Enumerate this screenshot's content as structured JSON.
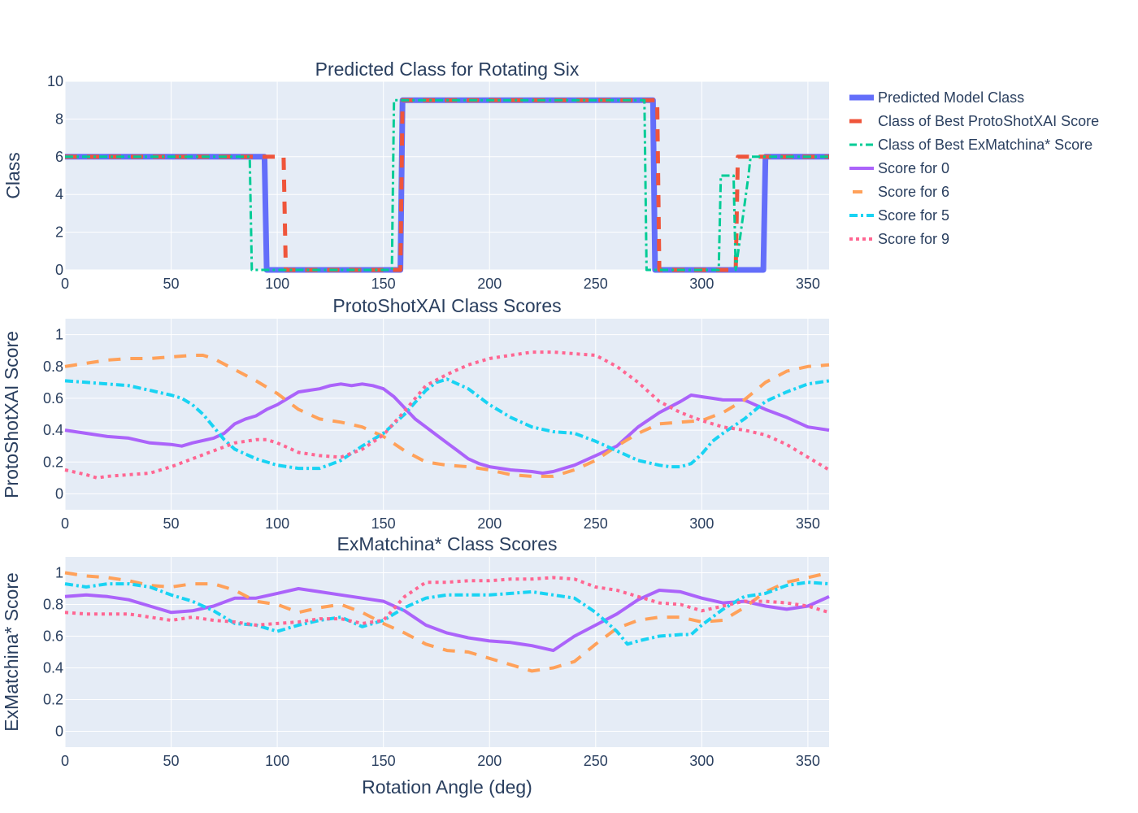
{
  "figure": {
    "legend_position": "right",
    "x_axis_label": "Rotation Angle (deg)"
  },
  "chart_data": [
    {
      "type": "line",
      "title": "Predicted Class for Rotating Six",
      "xlabel": "",
      "ylabel": "Class",
      "xlim": [
        0,
        360
      ],
      "ylim": [
        0,
        10
      ],
      "xticks": [
        0,
        50,
        100,
        150,
        200,
        250,
        300,
        350
      ],
      "yticks": [
        0,
        2,
        4,
        6,
        8,
        10
      ],
      "grid": true,
      "series": [
        {
          "name": "Predicted Model Class",
          "color": "#636efa",
          "dash": "solid",
          "width": 7,
          "line_shape": "step",
          "x": [
            0,
            94,
            95,
            158,
            159,
            277,
            278,
            329,
            330,
            360
          ],
          "y": [
            6,
            6,
            0,
            0,
            9,
            9,
            0,
            0,
            6,
            6
          ]
        },
        {
          "name": "Class of Best ProtoShotXAI Score",
          "color": "#ef553b",
          "dash": "dash",
          "width": 5,
          "line_shape": "step",
          "x": [
            0,
            103,
            104,
            158,
            159,
            279,
            280,
            316,
            317,
            360
          ],
          "y": [
            6,
            6,
            0,
            0,
            9,
            9,
            0,
            0,
            6,
            6
          ]
        },
        {
          "name": "Class of Best ExMatchina* Score",
          "color": "#00cc96",
          "dash": "dashdot",
          "width": 3,
          "line_shape": "step",
          "x": [
            0,
            87,
            88,
            154,
            155,
            273,
            274,
            308,
            309,
            315,
            316,
            322,
            323,
            360
          ],
          "y": [
            6,
            6,
            0,
            0,
            9,
            9,
            0,
            0,
            5,
            5,
            0,
            5,
            6,
            6
          ]
        }
      ]
    },
    {
      "type": "line",
      "title": "ProtoShotXAI Class Scores",
      "xlabel": "",
      "ylabel": "ProtoShotXAI Score",
      "xlim": [
        0,
        360
      ],
      "ylim": [
        -0.1,
        1.1
      ],
      "xticks": [
        0,
        50,
        100,
        150,
        200,
        250,
        300,
        350
      ],
      "yticks": [
        0,
        0.2,
        0.4,
        0.6,
        0.8,
        1
      ],
      "grid": true,
      "series": [
        {
          "name": "Score for 0",
          "color": "#ab63fa",
          "dash": "solid",
          "width": 4,
          "x": [
            0,
            10,
            20,
            30,
            40,
            50,
            55,
            60,
            70,
            75,
            80,
            85,
            90,
            95,
            100,
            105,
            110,
            115,
            120,
            125,
            130,
            135,
            140,
            145,
            150,
            155,
            160,
            165,
            170,
            175,
            180,
            185,
            190,
            195,
            200,
            210,
            220,
            225,
            230,
            240,
            250,
            260,
            270,
            280,
            290,
            295,
            300,
            305,
            310,
            315,
            320,
            330,
            340,
            350,
            360
          ],
          "y": [
            0.4,
            0.38,
            0.36,
            0.35,
            0.32,
            0.31,
            0.3,
            0.32,
            0.35,
            0.38,
            0.44,
            0.47,
            0.49,
            0.53,
            0.56,
            0.6,
            0.64,
            0.65,
            0.66,
            0.68,
            0.69,
            0.68,
            0.69,
            0.68,
            0.66,
            0.61,
            0.54,
            0.47,
            0.42,
            0.37,
            0.32,
            0.27,
            0.22,
            0.19,
            0.17,
            0.15,
            0.14,
            0.13,
            0.14,
            0.18,
            0.24,
            0.3,
            0.42,
            0.51,
            0.58,
            0.62,
            0.61,
            0.6,
            0.59,
            0.59,
            0.59,
            0.53,
            0.48,
            0.42,
            0.4
          ]
        },
        {
          "name": "Score for 6",
          "color": "#ffa15a",
          "dash": "dash",
          "width": 4,
          "x": [
            0,
            10,
            20,
            30,
            40,
            50,
            60,
            65,
            70,
            80,
            90,
            100,
            110,
            120,
            130,
            140,
            150,
            160,
            170,
            180,
            190,
            200,
            210,
            220,
            230,
            240,
            250,
            260,
            270,
            280,
            290,
            300,
            310,
            320,
            330,
            340,
            350,
            360
          ],
          "y": [
            0.8,
            0.82,
            0.84,
            0.85,
            0.85,
            0.86,
            0.87,
            0.87,
            0.85,
            0.78,
            0.71,
            0.63,
            0.53,
            0.47,
            0.45,
            0.42,
            0.36,
            0.27,
            0.2,
            0.18,
            0.17,
            0.15,
            0.12,
            0.11,
            0.11,
            0.15,
            0.21,
            0.3,
            0.38,
            0.44,
            0.45,
            0.46,
            0.51,
            0.59,
            0.7,
            0.77,
            0.8,
            0.81
          ]
        },
        {
          "name": "Score for 5",
          "color": "#19d3f3",
          "dash": "dashdot",
          "width": 4,
          "x": [
            0,
            10,
            20,
            30,
            40,
            50,
            55,
            60,
            65,
            70,
            75,
            80,
            90,
            100,
            110,
            120,
            130,
            140,
            150,
            160,
            170,
            175,
            180,
            190,
            200,
            210,
            220,
            230,
            240,
            250,
            260,
            270,
            280,
            285,
            290,
            295,
            300,
            305,
            310,
            320,
            330,
            340,
            350,
            360
          ],
          "y": [
            0.71,
            0.7,
            0.69,
            0.68,
            0.65,
            0.62,
            0.6,
            0.56,
            0.5,
            0.42,
            0.34,
            0.28,
            0.22,
            0.18,
            0.16,
            0.16,
            0.21,
            0.3,
            0.38,
            0.5,
            0.65,
            0.7,
            0.72,
            0.66,
            0.56,
            0.48,
            0.42,
            0.39,
            0.38,
            0.33,
            0.27,
            0.21,
            0.18,
            0.17,
            0.17,
            0.19,
            0.25,
            0.33,
            0.38,
            0.47,
            0.58,
            0.64,
            0.69,
            0.71
          ]
        },
        {
          "name": "Score for 9",
          "color": "#ff6692",
          "dash": "dot",
          "width": 4,
          "x": [
            0,
            10,
            15,
            20,
            30,
            40,
            50,
            60,
            70,
            80,
            90,
            95,
            100,
            105,
            110,
            120,
            130,
            140,
            150,
            160,
            170,
            180,
            190,
            200,
            210,
            220,
            230,
            240,
            250,
            260,
            270,
            280,
            290,
            300,
            310,
            320,
            330,
            340,
            350,
            360
          ],
          "y": [
            0.15,
            0.12,
            0.1,
            0.11,
            0.12,
            0.13,
            0.17,
            0.22,
            0.27,
            0.32,
            0.34,
            0.34,
            0.32,
            0.29,
            0.26,
            0.24,
            0.23,
            0.28,
            0.37,
            0.52,
            0.68,
            0.75,
            0.81,
            0.85,
            0.87,
            0.89,
            0.89,
            0.88,
            0.87,
            0.8,
            0.7,
            0.58,
            0.51,
            0.46,
            0.42,
            0.4,
            0.37,
            0.31,
            0.23,
            0.15
          ]
        }
      ]
    },
    {
      "type": "line",
      "title": "ExMatchina* Class Scores",
      "xlabel": "Rotation Angle (deg)",
      "ylabel": "ExMatchina* Score",
      "xlim": [
        0,
        360
      ],
      "ylim": [
        -0.1,
        1.1
      ],
      "xticks": [
        0,
        50,
        100,
        150,
        200,
        250,
        300,
        350
      ],
      "yticks": [
        0,
        0.2,
        0.4,
        0.6,
        0.8,
        1
      ],
      "grid": true,
      "series": [
        {
          "name": "Score for 0",
          "color": "#ab63fa",
          "dash": "solid",
          "width": 4,
          "x": [
            0,
            10,
            20,
            30,
            40,
            50,
            60,
            70,
            80,
            90,
            100,
            110,
            120,
            130,
            140,
            150,
            160,
            170,
            180,
            190,
            200,
            210,
            220,
            230,
            240,
            250,
            260,
            270,
            280,
            290,
            300,
            310,
            320,
            330,
            340,
            350,
            360
          ],
          "y": [
            0.85,
            0.86,
            0.85,
            0.83,
            0.79,
            0.75,
            0.76,
            0.79,
            0.84,
            0.84,
            0.87,
            0.9,
            0.88,
            0.86,
            0.84,
            0.82,
            0.76,
            0.67,
            0.62,
            0.59,
            0.57,
            0.56,
            0.54,
            0.51,
            0.6,
            0.67,
            0.74,
            0.83,
            0.89,
            0.88,
            0.84,
            0.81,
            0.82,
            0.79,
            0.77,
            0.79,
            0.85
          ]
        },
        {
          "name": "Score for 6",
          "color": "#ffa15a",
          "dash": "dash",
          "width": 4,
          "x": [
            0,
            10,
            20,
            30,
            40,
            50,
            60,
            70,
            80,
            90,
            100,
            110,
            120,
            130,
            140,
            150,
            160,
            170,
            180,
            190,
            200,
            210,
            220,
            230,
            240,
            250,
            260,
            270,
            280,
            290,
            300,
            310,
            320,
            330,
            340,
            350,
            360
          ],
          "y": [
            1.0,
            0.98,
            0.97,
            0.95,
            0.92,
            0.91,
            0.93,
            0.93,
            0.89,
            0.82,
            0.8,
            0.75,
            0.78,
            0.8,
            0.75,
            0.68,
            0.62,
            0.55,
            0.51,
            0.5,
            0.46,
            0.42,
            0.38,
            0.4,
            0.44,
            0.55,
            0.65,
            0.7,
            0.72,
            0.72,
            0.69,
            0.7,
            0.78,
            0.88,
            0.94,
            0.97,
            1.0
          ]
        },
        {
          "name": "Score for 5",
          "color": "#19d3f3",
          "dash": "dashdot",
          "width": 4,
          "x": [
            0,
            10,
            20,
            30,
            40,
            50,
            60,
            70,
            80,
            90,
            100,
            110,
            120,
            130,
            140,
            150,
            160,
            170,
            180,
            190,
            200,
            210,
            220,
            230,
            240,
            250,
            260,
            265,
            270,
            280,
            290,
            295,
            300,
            310,
            320,
            330,
            340,
            350,
            360
          ],
          "y": [
            0.93,
            0.91,
            0.93,
            0.93,
            0.91,
            0.86,
            0.82,
            0.76,
            0.68,
            0.67,
            0.63,
            0.67,
            0.7,
            0.72,
            0.66,
            0.7,
            0.78,
            0.84,
            0.86,
            0.86,
            0.86,
            0.87,
            0.88,
            0.86,
            0.84,
            0.75,
            0.63,
            0.55,
            0.57,
            0.6,
            0.61,
            0.61,
            0.67,
            0.77,
            0.85,
            0.87,
            0.92,
            0.94,
            0.93
          ]
        },
        {
          "name": "Score for 9",
          "color": "#ff6692",
          "dash": "dot",
          "width": 4,
          "x": [
            0,
            10,
            20,
            30,
            40,
            50,
            60,
            70,
            80,
            90,
            100,
            110,
            120,
            130,
            140,
            150,
            160,
            170,
            180,
            190,
            200,
            210,
            220,
            230,
            240,
            250,
            260,
            270,
            280,
            290,
            300,
            310,
            320,
            330,
            340,
            350,
            360
          ],
          "y": [
            0.75,
            0.74,
            0.74,
            0.74,
            0.72,
            0.7,
            0.72,
            0.7,
            0.69,
            0.67,
            0.68,
            0.69,
            0.71,
            0.71,
            0.68,
            0.7,
            0.85,
            0.94,
            0.94,
            0.95,
            0.95,
            0.96,
            0.96,
            0.97,
            0.96,
            0.91,
            0.89,
            0.85,
            0.81,
            0.8,
            0.76,
            0.79,
            0.82,
            0.82,
            0.81,
            0.79,
            0.75
          ]
        }
      ]
    }
  ]
}
